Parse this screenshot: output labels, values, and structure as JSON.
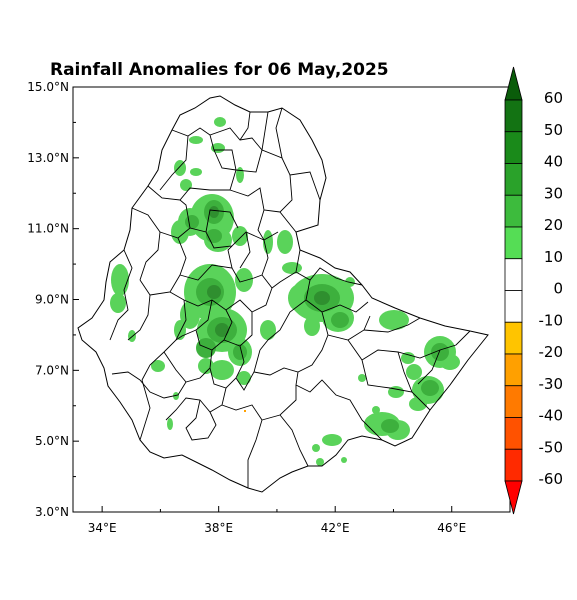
{
  "title": "Rainfall Anomalies for 06 May,2025",
  "y_axis": {
    "ticks": [
      {
        "label": "15.0°N",
        "lat": 15
      },
      {
        "label": "13.0°N",
        "lat": 13
      },
      {
        "label": "11.0°N",
        "lat": 11
      },
      {
        "label": "9.0°N",
        "lat": 9
      },
      {
        "label": "7.0°N",
        "lat": 7
      },
      {
        "label": "5.0°N",
        "lat": 5
      },
      {
        "label": "3.0°N",
        "lat": 3
      }
    ],
    "range": [
      3,
      15
    ]
  },
  "x_axis": {
    "ticks": [
      {
        "label": "34°E",
        "lon": 34
      },
      {
        "label": "38°E",
        "lon": 38
      },
      {
        "label": "42°E",
        "lon": 42
      },
      {
        "label": "46°E",
        "lon": 46
      }
    ],
    "range": [
      33,
      48
    ]
  },
  "colorbar": {
    "labels": [
      "60",
      "50",
      "40",
      "30",
      "20",
      "10",
      "0",
      "-10",
      "-20",
      "-30",
      "-40",
      "-50",
      "-60"
    ],
    "colors": [
      "#0a5c0a",
      "#137313",
      "#1a8a1a",
      "#2aa22a",
      "#3dbb3d",
      "#55dd55",
      "#ffffff",
      "#ffffff",
      "#ffc400",
      "#ffa000",
      "#ff7a00",
      "#ff5200",
      "#ff2a00",
      "#ff0000"
    ]
  },
  "anomaly_colors": {
    "light": "#5ad35a",
    "mid": "#3db03d",
    "dark": "#2f8f2f",
    "darkest": "#247224"
  }
}
